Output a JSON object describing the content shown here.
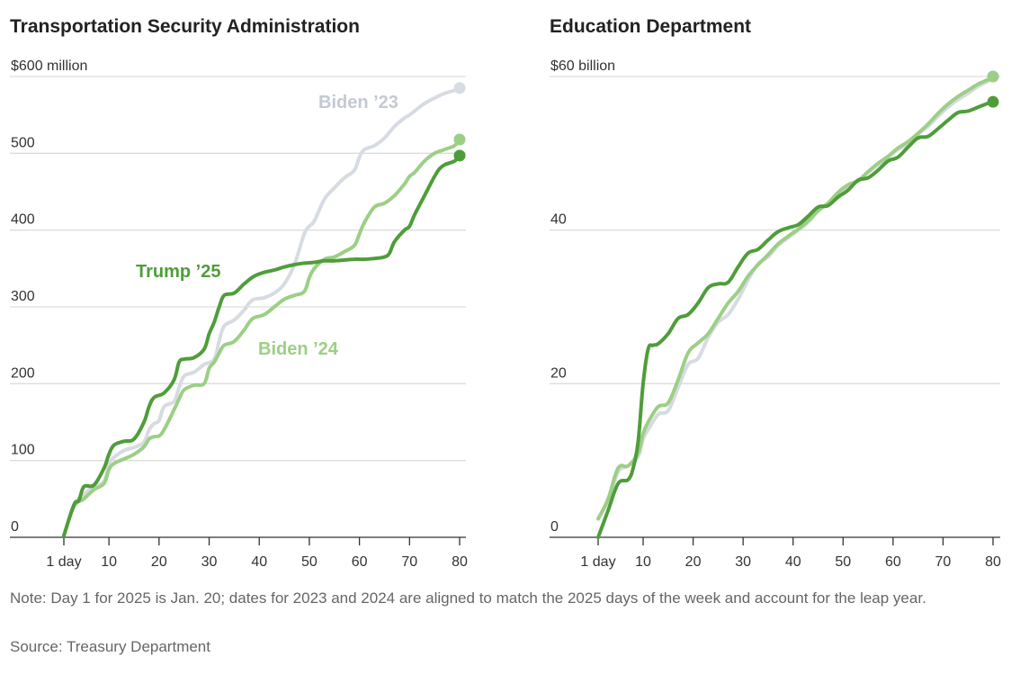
{
  "note": "Note: Day 1 for 2025 is Jan. 20; dates for 2023 and 2024 are aligned to match the 2025 days of the week and account for the leap year.",
  "source": "Source: Treasury Department",
  "colors": {
    "trump25": "#4f9d3a",
    "biden24": "#9ccf86",
    "biden23": "#d7dbe2",
    "grid": "#dddddd",
    "axis": "#333333"
  },
  "chart_data": [
    {
      "type": "line",
      "title": "Transportation Security Administration",
      "x_ticks": [
        "1 day",
        "10",
        "20",
        "30",
        "40",
        "50",
        "60",
        "70",
        "80"
      ],
      "y_ticks": [
        "0",
        "100",
        "200",
        "300",
        "400",
        "500",
        "$600 million"
      ],
      "xlim": [
        1,
        80
      ],
      "ylim": [
        0,
        600
      ],
      "series": [
        {
          "name": "Biden ’23",
          "key": "biden23",
          "x": [
            1,
            3,
            5,
            7,
            9,
            10,
            11,
            13,
            15,
            17,
            18,
            19,
            20,
            21,
            23,
            24,
            25,
            27,
            29,
            31,
            32,
            33,
            35,
            37,
            38,
            39,
            41,
            43,
            45,
            47,
            49,
            50,
            51,
            53,
            55,
            57,
            59,
            60,
            61,
            63,
            65,
            67,
            69,
            70,
            71,
            73,
            75,
            77,
            79,
            80
          ],
          "y": [
            2,
            42,
            56,
            66,
            73,
            95,
            104,
            113,
            117,
            124,
            140,
            148,
            152,
            170,
            177,
            195,
            210,
            215,
            225,
            232,
            256,
            275,
            283,
            296,
            305,
            310,
            312,
            318,
            330,
            355,
            395,
            405,
            412,
            440,
            455,
            468,
            478,
            495,
            505,
            510,
            520,
            535,
            546,
            550,
            555,
            565,
            572,
            578,
            582,
            585
          ]
        },
        {
          "name": "Biden ’24",
          "key": "biden24",
          "x": [
            1,
            3,
            5,
            7,
            9,
            10,
            11,
            13,
            15,
            17,
            18,
            19,
            20,
            21,
            23,
            24,
            25,
            27,
            29,
            30,
            31,
            32,
            33,
            35,
            37,
            38,
            39,
            41,
            43,
            45,
            47,
            49,
            50,
            51,
            53,
            55,
            57,
            59,
            60,
            61,
            63,
            65,
            67,
            69,
            70,
            71,
            73,
            75,
            77,
            79,
            80
          ],
          "y": [
            2,
            40,
            50,
            62,
            70,
            88,
            96,
            102,
            108,
            118,
            128,
            131,
            132,
            140,
            166,
            180,
            192,
            198,
            200,
            220,
            228,
            240,
            250,
            255,
            270,
            280,
            286,
            290,
            300,
            310,
            315,
            320,
            338,
            350,
            362,
            365,
            372,
            380,
            395,
            410,
            430,
            435,
            445,
            460,
            470,
            475,
            490,
            500,
            505,
            510,
            518
          ]
        },
        {
          "name": "Trump ’25",
          "key": "trump25",
          "x": [
            1,
            3,
            4,
            5,
            7,
            9,
            10,
            11,
            13,
            15,
            17,
            18,
            19,
            21,
            23,
            24,
            25,
            27,
            29,
            30,
            31,
            32,
            33,
            35,
            37,
            39,
            41,
            43,
            45,
            47,
            49,
            51,
            53,
            55,
            57,
            59,
            61,
            63,
            65,
            66,
            67,
            69,
            70,
            71,
            73,
            75,
            76,
            77,
            79,
            80
          ],
          "y": [
            2,
            42,
            48,
            66,
            68,
            90,
            108,
            120,
            125,
            128,
            150,
            170,
            182,
            188,
            205,
            228,
            232,
            234,
            245,
            265,
            280,
            300,
            315,
            318,
            330,
            340,
            345,
            348,
            352,
            355,
            357,
            358,
            360,
            360,
            361,
            362,
            362,
            363,
            365,
            370,
            385,
            400,
            405,
            420,
            445,
            470,
            480,
            485,
            490,
            497
          ]
        }
      ]
    },
    {
      "type": "line",
      "title": "Education Department",
      "x_ticks": [
        "1 day",
        "10",
        "20",
        "30",
        "40",
        "50",
        "60",
        "70",
        "80"
      ],
      "y_ticks": [
        "0",
        "20",
        "40",
        "$60 billion"
      ],
      "xlim": [
        1,
        80
      ],
      "ylim": [
        0,
        60
      ],
      "series": [
        {
          "name": "Biden ’23",
          "key": "biden23",
          "x": [
            1,
            3,
            5,
            7,
            9,
            10,
            11,
            13,
            15,
            17,
            19,
            21,
            23,
            25,
            27,
            29,
            31,
            33,
            35,
            37,
            39,
            41,
            43,
            45,
            47,
            49,
            51,
            53,
            55,
            57,
            59,
            61,
            63,
            65,
            67,
            69,
            71,
            73,
            75,
            77,
            79,
            80
          ],
          "y": [
            2.4,
            4.8,
            8.5,
            9.3,
            10.5,
            12.8,
            14,
            16,
            16.5,
            19.5,
            22.5,
            23.3,
            26,
            28,
            29,
            31,
            33.5,
            35.6,
            36.5,
            38,
            39,
            40,
            41,
            42.5,
            43.5,
            44.8,
            45.8,
            46.5,
            47.5,
            48.5,
            49.5,
            50.5,
            51.2,
            52.5,
            53.5,
            54.8,
            56,
            57,
            57.8,
            58.7,
            59.4,
            60
          ]
        },
        {
          "name": "Biden ’24",
          "key": "biden24",
          "x": [
            1,
            3,
            5,
            7,
            9,
            10,
            11,
            13,
            15,
            17,
            19,
            21,
            23,
            25,
            27,
            29,
            31,
            33,
            35,
            37,
            39,
            41,
            43,
            45,
            47,
            49,
            51,
            53,
            55,
            57,
            59,
            61,
            63,
            65,
            67,
            69,
            71,
            73,
            75,
            77,
            79,
            80
          ],
          "y": [
            2.4,
            5,
            9,
            9.3,
            11,
            13.5,
            15,
            17,
            17.5,
            20.5,
            24,
            25.3,
            26.5,
            28.5,
            30.5,
            32,
            34,
            35.5,
            36.8,
            38.2,
            39.2,
            40.1,
            41.2,
            42.5,
            43.5,
            44.9,
            45.9,
            46.4,
            47.6,
            48.7,
            49.6,
            50.7,
            51.5,
            52.6,
            53.8,
            55.2,
            56.4,
            57.4,
            58.2,
            59.0,
            59.6,
            60
          ]
        },
        {
          "name": "Trump ’25",
          "key": "trump25",
          "x": [
            1,
            3,
            5,
            7,
            8,
            9,
            10,
            11,
            12,
            13,
            15,
            17,
            19,
            21,
            23,
            25,
            27,
            29,
            31,
            33,
            35,
            37,
            39,
            41,
            43,
            45,
            47,
            49,
            51,
            53,
            55,
            57,
            59,
            61,
            63,
            65,
            67,
            69,
            71,
            73,
            75,
            77,
            79,
            80
          ],
          "y": [
            0,
            3.5,
            7,
            7.5,
            9,
            12.5,
            20,
            24.5,
            25,
            25.2,
            26.5,
            28.5,
            29,
            30.5,
            32.5,
            33,
            33.2,
            35.2,
            37,
            37.5,
            38.7,
            39.8,
            40.3,
            40.7,
            41.8,
            43,
            43.2,
            44.3,
            45.2,
            46.5,
            46.8,
            47.8,
            49,
            49.5,
            50.8,
            52,
            52.2,
            53.2,
            54.3,
            55.3,
            55.5,
            56,
            56.5,
            56.7
          ]
        }
      ]
    }
  ]
}
